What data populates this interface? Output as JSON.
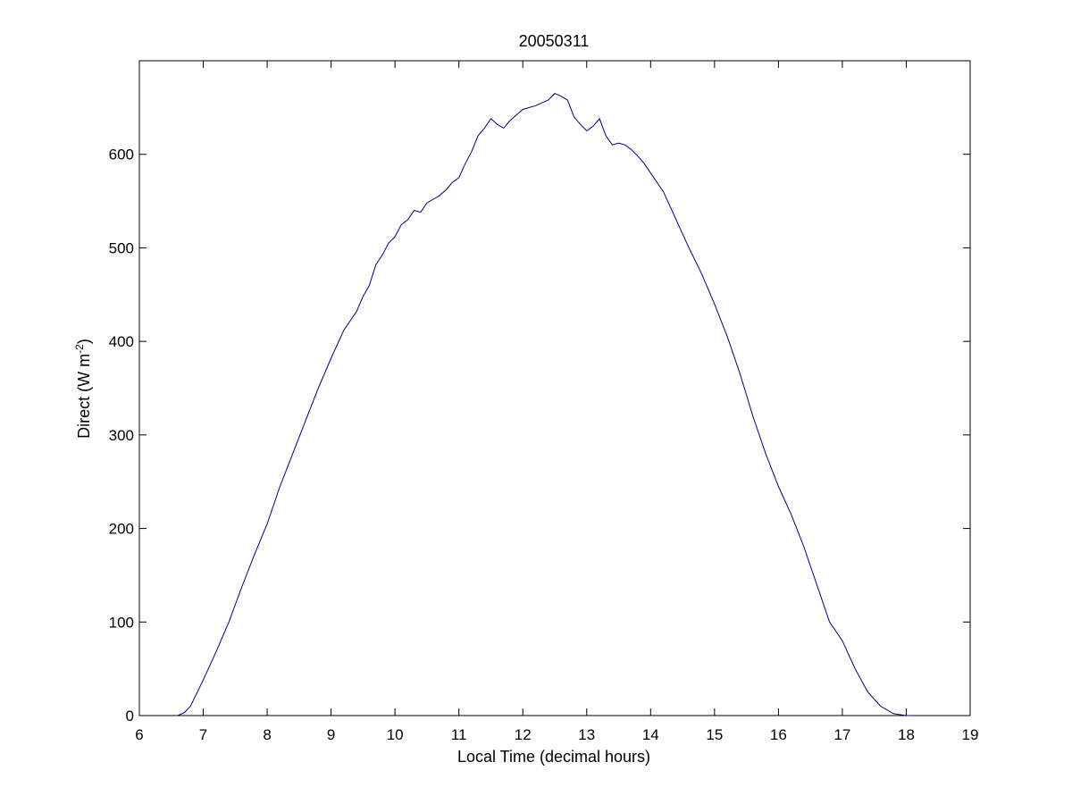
{
  "chart_data": {
    "type": "line",
    "title": "20050311",
    "xlabel": "Local Time (decimal hours)",
    "ylabel_main": "Direct (W m",
    "ylabel_sup": "-2",
    "ylabel_end": ")",
    "xlim": [
      6,
      19
    ],
    "ylim": [
      0,
      700
    ],
    "xticks": [
      "6",
      "7",
      "8",
      "9",
      "10",
      "11",
      "12",
      "13",
      "14",
      "15",
      "16",
      "17",
      "18",
      "19"
    ],
    "yticks": [
      "0",
      "100",
      "200",
      "300",
      "400",
      "500",
      "600"
    ],
    "grid": false,
    "line_color": "#00007f",
    "series": [
      {
        "x": [
          6.6,
          6.7,
          6.8,
          7.0,
          7.2,
          7.4,
          7.6,
          7.8,
          8.0,
          8.2,
          8.4,
          8.6,
          8.8,
          9.0,
          9.2,
          9.4,
          9.5,
          9.6,
          9.7,
          9.8,
          9.9,
          10.0,
          10.1,
          10.2,
          10.3,
          10.4,
          10.5,
          10.6,
          10.7,
          10.8,
          10.9,
          11.0,
          11.1,
          11.2,
          11.3,
          11.4,
          11.5,
          11.6,
          11.7,
          11.8,
          11.9,
          12.0,
          12.1,
          12.2,
          12.3,
          12.4,
          12.5,
          12.6,
          12.7,
          12.8,
          12.9,
          13.0,
          13.1,
          13.2,
          13.3,
          13.4,
          13.5,
          13.6,
          13.7,
          13.8,
          13.9,
          14.0,
          14.2,
          14.4,
          14.6,
          14.8,
          15.0,
          15.2,
          15.4,
          15.6,
          15.8,
          16.0,
          16.2,
          16.4,
          16.6,
          16.8,
          17.0,
          17.2,
          17.4,
          17.6,
          17.8,
          18.0,
          18.1
        ],
        "y": [
          0,
          3,
          10,
          38,
          68,
          100,
          137,
          172,
          205,
          245,
          280,
          315,
          350,
          382,
          412,
          432,
          448,
          460,
          482,
          492,
          505,
          512,
          525,
          530,
          540,
          538,
          548,
          552,
          556,
          562,
          570,
          575,
          590,
          603,
          620,
          628,
          638,
          632,
          628,
          636,
          642,
          648,
          650,
          652,
          655,
          658,
          665,
          662,
          658,
          640,
          632,
          625,
          630,
          638,
          620,
          610,
          612,
          610,
          605,
          598,
          590,
          580,
          560,
          530,
          500,
          472,
          440,
          405,
          365,
          320,
          280,
          245,
          215,
          180,
          140,
          100,
          80,
          50,
          25,
          10,
          2,
          0,
          0
        ]
      }
    ]
  }
}
